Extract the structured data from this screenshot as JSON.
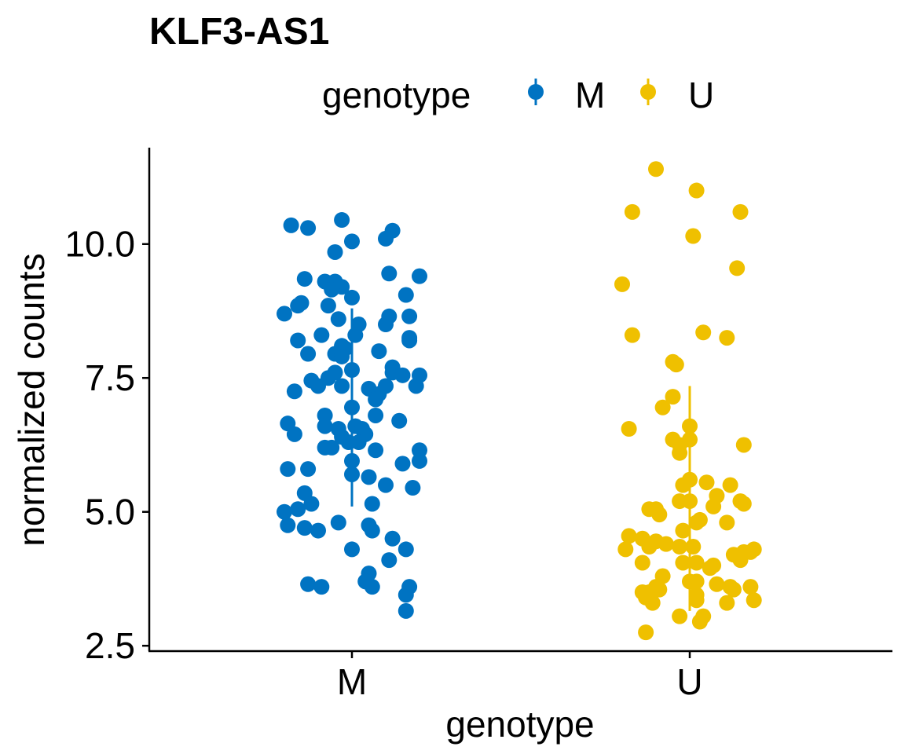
{
  "chart_data": {
    "type": "scatter",
    "title": "KLF3-AS1",
    "xlabel": "genotype",
    "ylabel": "normalized counts",
    "categories": [
      "M",
      "U"
    ],
    "ylim": [
      2.4,
      11.8
    ],
    "yticks": [
      "2.5",
      "5.0",
      "7.5",
      "10.0"
    ],
    "grid": false,
    "legend": {
      "title": "genotype",
      "position": "top",
      "entries": [
        "M",
        "U"
      ]
    },
    "colors": {
      "M": "#0073C2",
      "U": "#EFC000"
    },
    "series": [
      {
        "name": "M",
        "summary": {
          "mean": 6.95,
          "lower": 5.1,
          "upper": 8.8
        },
        "points": [
          {
            "jitter": -0.18,
            "y": 10.35
          },
          {
            "jitter": -0.13,
            "y": 10.3
          },
          {
            "jitter": -0.03,
            "y": 10.45
          },
          {
            "jitter": 0.0,
            "y": 10.05
          },
          {
            "jitter": 0.1,
            "y": 10.1
          },
          {
            "jitter": 0.12,
            "y": 10.25
          },
          {
            "jitter": -0.05,
            "y": 9.85
          },
          {
            "jitter": 0.11,
            "y": 9.45
          },
          {
            "jitter": 0.2,
            "y": 9.4
          },
          {
            "jitter": -0.14,
            "y": 9.35
          },
          {
            "jitter": -0.08,
            "y": 9.3
          },
          {
            "jitter": -0.05,
            "y": 9.3
          },
          {
            "jitter": -0.03,
            "y": 9.2
          },
          {
            "jitter": -0.06,
            "y": 9.15
          },
          {
            "jitter": 0.0,
            "y": 9.0
          },
          {
            "jitter": 0.16,
            "y": 9.05
          },
          {
            "jitter": -0.15,
            "y": 8.9
          },
          {
            "jitter": -0.07,
            "y": 8.85
          },
          {
            "jitter": -0.2,
            "y": 8.7
          },
          {
            "jitter": -0.16,
            "y": 8.85
          },
          {
            "jitter": -0.04,
            "y": 8.6
          },
          {
            "jitter": 0.11,
            "y": 8.65
          },
          {
            "jitter": 0.17,
            "y": 8.65
          },
          {
            "jitter": 0.02,
            "y": 8.5
          },
          {
            "jitter": 0.1,
            "y": 8.5
          },
          {
            "jitter": -0.09,
            "y": 8.3
          },
          {
            "jitter": 0.01,
            "y": 8.3
          },
          {
            "jitter": -0.16,
            "y": 8.2
          },
          {
            "jitter": 0.17,
            "y": 8.2
          },
          {
            "jitter": 0.17,
            "y": 8.25
          },
          {
            "jitter": -0.03,
            "y": 8.1
          },
          {
            "jitter": -0.02,
            "y": 8.05
          },
          {
            "jitter": -0.05,
            "y": 7.95
          },
          {
            "jitter": -0.13,
            "y": 7.95
          },
          {
            "jitter": 0.08,
            "y": 8.0
          },
          {
            "jitter": -0.03,
            "y": 7.9
          },
          {
            "jitter": 0.12,
            "y": 7.7
          },
          {
            "jitter": 0.0,
            "y": 7.65
          },
          {
            "jitter": 0.12,
            "y": 7.6
          },
          {
            "jitter": 0.15,
            "y": 7.55
          },
          {
            "jitter": 0.2,
            "y": 7.55
          },
          {
            "jitter": -0.05,
            "y": 7.6
          },
          {
            "jitter": -0.07,
            "y": 7.5
          },
          {
            "jitter": -0.12,
            "y": 7.45
          },
          {
            "jitter": -0.1,
            "y": 7.35
          },
          {
            "jitter": -0.03,
            "y": 7.35
          },
          {
            "jitter": 0.1,
            "y": 7.35
          },
          {
            "jitter": 0.19,
            "y": 7.35
          },
          {
            "jitter": -0.17,
            "y": 7.25
          },
          {
            "jitter": 0.05,
            "y": 7.3
          },
          {
            "jitter": 0.08,
            "y": 7.2
          },
          {
            "jitter": 0.07,
            "y": 7.1
          },
          {
            "jitter": 0.0,
            "y": 6.95
          },
          {
            "jitter": -0.08,
            "y": 6.8
          },
          {
            "jitter": 0.07,
            "y": 6.8
          },
          {
            "jitter": 0.14,
            "y": 6.7
          },
          {
            "jitter": -0.19,
            "y": 6.65
          },
          {
            "jitter": -0.08,
            "y": 6.6
          },
          {
            "jitter": -0.04,
            "y": 6.55
          },
          {
            "jitter": 0.01,
            "y": 6.6
          },
          {
            "jitter": 0.03,
            "y": 6.55
          },
          {
            "jitter": 0.04,
            "y": 6.45
          },
          {
            "jitter": -0.17,
            "y": 6.45
          },
          {
            "jitter": -0.03,
            "y": 6.4
          },
          {
            "jitter": -0.01,
            "y": 6.3
          },
          {
            "jitter": 0.02,
            "y": 6.3
          },
          {
            "jitter": -0.06,
            "y": 6.2
          },
          {
            "jitter": -0.08,
            "y": 6.2
          },
          {
            "jitter": 0.07,
            "y": 6.15
          },
          {
            "jitter": 0.2,
            "y": 6.15
          },
          {
            "jitter": 0.0,
            "y": 5.95
          },
          {
            "jitter": 0.15,
            "y": 5.9
          },
          {
            "jitter": 0.2,
            "y": 5.95
          },
          {
            "jitter": -0.19,
            "y": 5.8
          },
          {
            "jitter": -0.13,
            "y": 5.8
          },
          {
            "jitter": 0.0,
            "y": 5.7
          },
          {
            "jitter": 0.05,
            "y": 5.65
          },
          {
            "jitter": 0.1,
            "y": 5.5
          },
          {
            "jitter": 0.18,
            "y": 5.45
          },
          {
            "jitter": -0.14,
            "y": 5.35
          },
          {
            "jitter": -0.12,
            "y": 5.15
          },
          {
            "jitter": 0.06,
            "y": 5.15
          },
          {
            "jitter": -0.2,
            "y": 5.0
          },
          {
            "jitter": -0.16,
            "y": 5.05
          },
          {
            "jitter": -0.19,
            "y": 4.75
          },
          {
            "jitter": -0.14,
            "y": 4.7
          },
          {
            "jitter": -0.1,
            "y": 4.65
          },
          {
            "jitter": -0.04,
            "y": 4.8
          },
          {
            "jitter": 0.05,
            "y": 4.75
          },
          {
            "jitter": 0.06,
            "y": 4.65
          },
          {
            "jitter": 0.12,
            "y": 4.5
          },
          {
            "jitter": 0.16,
            "y": 4.3
          },
          {
            "jitter": 0.0,
            "y": 4.3
          },
          {
            "jitter": 0.11,
            "y": 4.1
          },
          {
            "jitter": 0.05,
            "y": 3.85
          },
          {
            "jitter": 0.04,
            "y": 3.7
          },
          {
            "jitter": 0.06,
            "y": 3.6
          },
          {
            "jitter": -0.13,
            "y": 3.65
          },
          {
            "jitter": -0.09,
            "y": 3.6
          },
          {
            "jitter": 0.17,
            "y": 3.6
          },
          {
            "jitter": 0.16,
            "y": 3.45
          },
          {
            "jitter": 0.16,
            "y": 3.15
          }
        ]
      },
      {
        "name": "U",
        "summary": {
          "mean": 4.95,
          "lower": 3.15,
          "upper": 7.35
        },
        "points": [
          {
            "jitter": -0.1,
            "y": 11.4
          },
          {
            "jitter": 0.02,
            "y": 11.0
          },
          {
            "jitter": -0.17,
            "y": 10.6
          },
          {
            "jitter": 0.15,
            "y": 10.6
          },
          {
            "jitter": 0.01,
            "y": 10.15
          },
          {
            "jitter": 0.14,
            "y": 9.55
          },
          {
            "jitter": -0.2,
            "y": 9.25
          },
          {
            "jitter": 0.04,
            "y": 8.35
          },
          {
            "jitter": 0.11,
            "y": 8.25
          },
          {
            "jitter": -0.17,
            "y": 8.3
          },
          {
            "jitter": -0.05,
            "y": 7.8
          },
          {
            "jitter": -0.04,
            "y": 7.75
          },
          {
            "jitter": -0.05,
            "y": 7.15
          },
          {
            "jitter": -0.08,
            "y": 6.95
          },
          {
            "jitter": -0.18,
            "y": 6.55
          },
          {
            "jitter": 0.0,
            "y": 6.6
          },
          {
            "jitter": -0.05,
            "y": 6.35
          },
          {
            "jitter": 0.0,
            "y": 6.35
          },
          {
            "jitter": -0.03,
            "y": 6.25
          },
          {
            "jitter": -0.03,
            "y": 6.1
          },
          {
            "jitter": 0.16,
            "y": 6.25
          },
          {
            "jitter": 0.0,
            "y": 5.6
          },
          {
            "jitter": 0.05,
            "y": 5.55
          },
          {
            "jitter": 0.12,
            "y": 5.5
          },
          {
            "jitter": -0.02,
            "y": 5.5
          },
          {
            "jitter": 0.08,
            "y": 5.3
          },
          {
            "jitter": 0.0,
            "y": 5.2
          },
          {
            "jitter": -0.03,
            "y": 5.2
          },
          {
            "jitter": 0.15,
            "y": 5.2
          },
          {
            "jitter": 0.16,
            "y": 5.15
          },
          {
            "jitter": 0.07,
            "y": 5.1
          },
          {
            "jitter": -0.12,
            "y": 5.05
          },
          {
            "jitter": -0.1,
            "y": 5.05
          },
          {
            "jitter": -0.09,
            "y": 4.95
          },
          {
            "jitter": 0.03,
            "y": 4.85
          },
          {
            "jitter": 0.02,
            "y": 4.8
          },
          {
            "jitter": 0.11,
            "y": 4.8
          },
          {
            "jitter": -0.02,
            "y": 4.65
          },
          {
            "jitter": -0.18,
            "y": 4.55
          },
          {
            "jitter": -0.14,
            "y": 4.5
          },
          {
            "jitter": -0.1,
            "y": 4.45
          },
          {
            "jitter": -0.07,
            "y": 4.4
          },
          {
            "jitter": -0.12,
            "y": 4.35
          },
          {
            "jitter": -0.03,
            "y": 4.35
          },
          {
            "jitter": 0.01,
            "y": 4.35
          },
          {
            "jitter": -0.19,
            "y": 4.3
          },
          {
            "jitter": 0.19,
            "y": 4.3
          },
          {
            "jitter": 0.16,
            "y": 4.25
          },
          {
            "jitter": 0.18,
            "y": 4.25
          },
          {
            "jitter": 0.13,
            "y": 4.2
          },
          {
            "jitter": 0.15,
            "y": 4.1
          },
          {
            "jitter": 0.07,
            "y": 4.0
          },
          {
            "jitter": -0.14,
            "y": 4.05
          },
          {
            "jitter": -0.02,
            "y": 4.05
          },
          {
            "jitter": 0.02,
            "y": 4.05
          },
          {
            "jitter": 0.06,
            "y": 3.95
          },
          {
            "jitter": -0.08,
            "y": 3.8
          },
          {
            "jitter": 0.0,
            "y": 3.7
          },
          {
            "jitter": 0.02,
            "y": 3.7
          },
          {
            "jitter": 0.08,
            "y": 3.65
          },
          {
            "jitter": 0.12,
            "y": 3.6
          },
          {
            "jitter": 0.13,
            "y": 3.55
          },
          {
            "jitter": 0.18,
            "y": 3.6
          },
          {
            "jitter": -0.1,
            "y": 3.6
          },
          {
            "jitter": -0.09,
            "y": 3.55
          },
          {
            "jitter": -0.12,
            "y": 3.5
          },
          {
            "jitter": -0.14,
            "y": 3.5
          },
          {
            "jitter": -0.13,
            "y": 3.4
          },
          {
            "jitter": -0.11,
            "y": 3.3
          },
          {
            "jitter": 0.02,
            "y": 3.45
          },
          {
            "jitter": 0.02,
            "y": 3.35
          },
          {
            "jitter": 0.11,
            "y": 3.3
          },
          {
            "jitter": 0.19,
            "y": 3.35
          },
          {
            "jitter": -0.03,
            "y": 3.05
          },
          {
            "jitter": 0.04,
            "y": 3.05
          },
          {
            "jitter": 0.03,
            "y": 2.95
          },
          {
            "jitter": -0.13,
            "y": 2.75
          }
        ]
      }
    ]
  }
}
